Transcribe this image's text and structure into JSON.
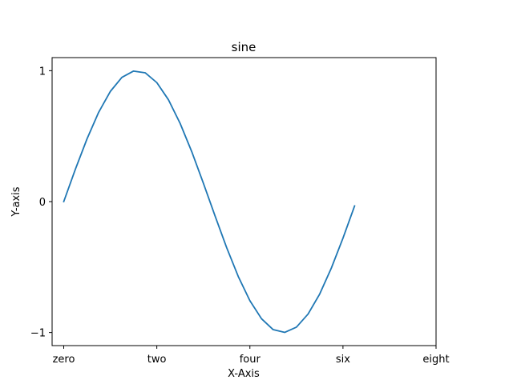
{
  "chart_data": {
    "type": "line",
    "title": "sine",
    "xlabel": "X-Axis",
    "ylabel": "Y-axis",
    "xlim": [
      -0.25,
      8.0
    ],
    "ylim": [
      -1.1,
      1.1
    ],
    "x_ticks": [
      {
        "value": 0,
        "label": "zero"
      },
      {
        "value": 2,
        "label": "two"
      },
      {
        "value": 4,
        "label": "four"
      },
      {
        "value": 6,
        "label": "six"
      },
      {
        "value": 8,
        "label": "eight"
      }
    ],
    "y_ticks": [
      {
        "value": -1,
        "label": "−1"
      },
      {
        "value": 0,
        "label": "0"
      },
      {
        "value": 1,
        "label": "1"
      }
    ],
    "grid": false,
    "series": [
      {
        "color": "#1f77b4",
        "x": [
          0.0,
          0.25,
          0.5,
          0.75,
          1.0,
          1.25,
          1.5,
          1.75,
          2.0,
          2.25,
          2.5,
          2.75,
          3.0,
          3.25,
          3.5,
          3.75,
          4.0,
          4.25,
          4.5,
          4.75,
          5.0,
          5.25,
          5.5,
          5.75,
          6.0,
          6.25
        ],
        "y": [
          0.0,
          0.247,
          0.479,
          0.682,
          0.841,
          0.949,
          0.997,
          0.984,
          0.909,
          0.778,
          0.598,
          0.382,
          0.141,
          -0.108,
          -0.351,
          -0.572,
          -0.757,
          -0.895,
          -0.978,
          -0.999,
          -0.959,
          -0.859,
          -0.706,
          -0.508,
          -0.279,
          -0.033
        ]
      }
    ]
  }
}
